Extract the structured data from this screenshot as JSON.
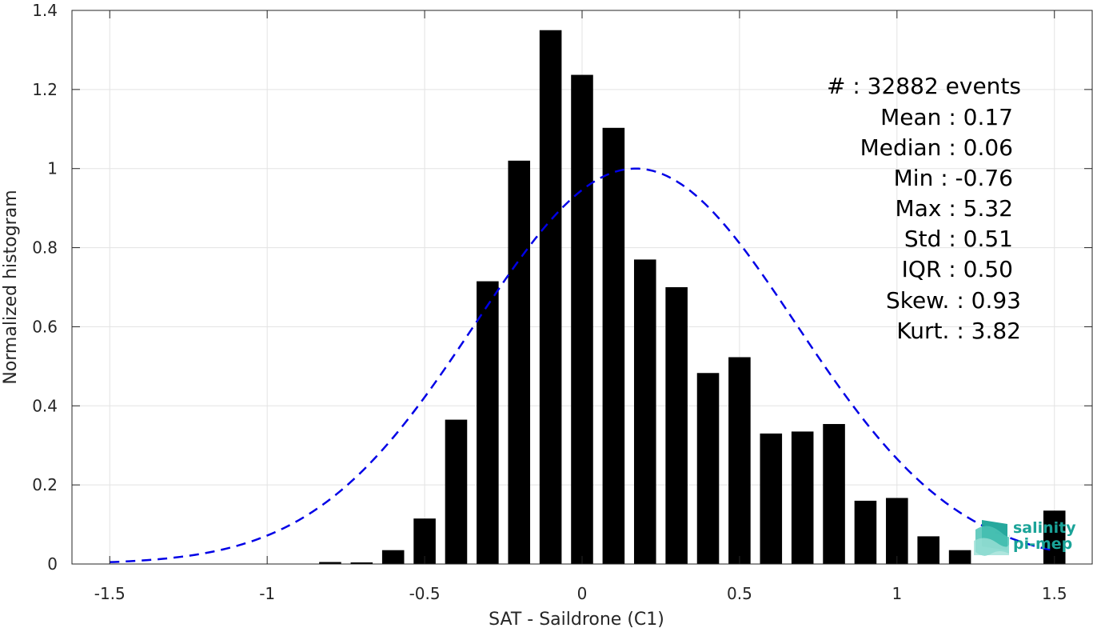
{
  "chart_data": {
    "type": "bar",
    "xlabel": "SAT - Saildrone (C1)",
    "ylabel": "Normalized histogram",
    "xlim": [
      -1.62,
      1.62
    ],
    "ylim": [
      0,
      1.4
    ],
    "xticks": [
      -1.5,
      -1,
      -0.5,
      0,
      0.5,
      1,
      1.5
    ],
    "xtick_labels": [
      "-1.5",
      "-1",
      "-0.5",
      "0",
      "0.5",
      "1",
      "1.5"
    ],
    "yticks": [
      0,
      0.2,
      0.4,
      0.6,
      0.8,
      1,
      1.2,
      1.4
    ],
    "ytick_labels": [
      "0",
      "0.2",
      "0.4",
      "0.6",
      "0.8",
      "1",
      "1.2",
      "1.4"
    ],
    "grid": true,
    "bar_width": 0.07,
    "bars": {
      "name": "histogram",
      "color": "#000000",
      "x": [
        -0.8,
        -0.7,
        -0.6,
        -0.5,
        -0.4,
        -0.3,
        -0.2,
        -0.1,
        0.0,
        0.1,
        0.2,
        0.3,
        0.4,
        0.5,
        0.6,
        0.7,
        0.8,
        0.9,
        1.0,
        1.1,
        1.2,
        1.5
      ],
      "values": [
        0.005,
        0.004,
        0.035,
        0.115,
        0.365,
        0.715,
        1.02,
        1.35,
        1.237,
        1.103,
        0.77,
        0.7,
        0.483,
        0.523,
        0.33,
        0.335,
        0.354,
        0.16,
        0.167,
        0.07,
        0.035,
        0.135
      ]
    },
    "fit_curve": {
      "name": "gaussian fit",
      "color": "#0000e6",
      "style": "dashed",
      "mean": 0.17,
      "std": 0.51,
      "peak": 1.0,
      "x_range": [
        -1.5,
        1.5
      ]
    },
    "stats": [
      {
        "label": "#  : 32882 events"
      },
      {
        "label": "Mean : 0.17"
      },
      {
        "label": "Median : 0.06"
      },
      {
        "label": "Min : -0.76"
      },
      {
        "label": "Max : 5.32"
      },
      {
        "label": "Std : 0.51"
      },
      {
        "label": "IQR : 0.50"
      },
      {
        "label": "Skew. : 0.93"
      },
      {
        "label": "Kurt. : 3.82"
      }
    ],
    "logo": {
      "line1": "salinity",
      "line2": "pi-mep",
      "color": "#1aa398"
    }
  }
}
